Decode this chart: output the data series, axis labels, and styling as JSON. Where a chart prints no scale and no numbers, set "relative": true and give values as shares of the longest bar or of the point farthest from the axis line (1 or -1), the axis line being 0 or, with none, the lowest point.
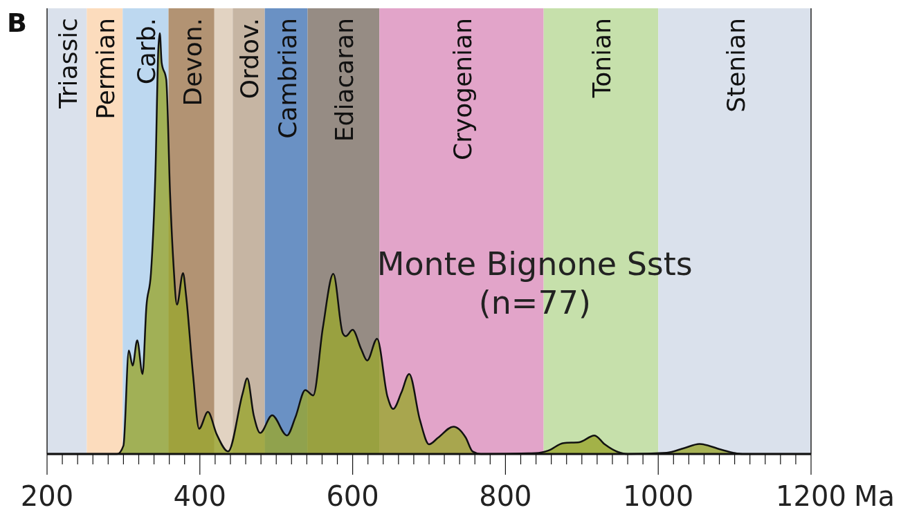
{
  "chart_data": {
    "type": "area",
    "relative": true,
    "xlabel": "Ma",
    "annotations": [
      "B",
      "Monte Bignone Ssts\n(n=77)"
    ],
    "xlim": [
      200,
      1200
    ],
    "xticks": [
      200,
      {
        "value": 220,
        "label": null
      },
      {
        "value": 240,
        "label": null
      },
      {
        "value": 260,
        "label": null
      },
      {
        "value": 280,
        "label": null
      },
      {
        "value": 300,
        "label": null
      },
      {
        "value": 320,
        "label": null
      },
      {
        "value": 340,
        "label": null
      },
      {
        "value": 360,
        "label": null
      },
      {
        "value": 380,
        "label": null
      },
      400,
      {
        "value": 420,
        "label": null
      },
      {
        "value": 440,
        "label": null
      },
      {
        "value": 460,
        "label": null
      },
      {
        "value": 480,
        "label": null
      },
      {
        "value": 500,
        "label": null
      },
      {
        "value": 520,
        "label": null
      },
      {
        "value": 540,
        "label": null
      },
      {
        "value": 560,
        "label": null
      },
      {
        "value": 580,
        "label": null
      },
      600,
      {
        "value": 620,
        "label": null
      },
      {
        "value": 640,
        "label": null
      },
      {
        "value": 660,
        "label": null
      },
      {
        "value": 680,
        "label": null
      },
      {
        "value": 700,
        "label": null
      },
      {
        "value": 720,
        "label": null
      },
      {
        "value": 740,
        "label": null
      },
      {
        "value": 760,
        "label": null
      },
      {
        "value": 780,
        "label": null
      },
      800,
      {
        "value": 820,
        "label": null
      },
      {
        "value": 840,
        "label": null
      },
      {
        "value": 860,
        "label": null
      },
      {
        "value": 880,
        "label": null
      },
      {
        "value": 900,
        "label": null
      },
      {
        "value": 920,
        "label": null
      },
      {
        "value": 940,
        "label": null
      },
      {
        "value": 960,
        "label": null
      },
      {
        "value": 980,
        "label": null
      },
      1000,
      {
        "value": 1020,
        "label": null
      },
      {
        "value": 1040,
        "label": null
      },
      {
        "value": 1060,
        "label": null
      },
      {
        "value": 1080,
        "label": null
      },
      {
        "value": 1100,
        "label": null
      },
      {
        "value": 1120,
        "label": null
      },
      {
        "value": 1140,
        "label": null
      },
      {
        "value": 1160,
        "label": null
      },
      {
        "value": 1180,
        "label": null
      },
      1200
    ],
    "bands": [
      {
        "axis": "x",
        "from": 200,
        "to": 252,
        "label": "Triassic",
        "color": "#dae1ec"
      },
      {
        "axis": "x",
        "from": 252,
        "to": 299,
        "label": "Permian",
        "color": "#fcdcbd"
      },
      {
        "axis": "x",
        "from": 299,
        "to": 359,
        "label": "Carb.",
        "color": "#bdd8f0"
      },
      {
        "axis": "x",
        "from": 359,
        "to": 419,
        "label": "Devon.",
        "color": "#b29373"
      },
      {
        "axis": "x",
        "from": 419,
        "to": 443,
        "color": "#e2d3c2"
      },
      {
        "axis": "x",
        "from": 443,
        "to": 485,
        "label": "Ordov.",
        "color": "#c6b5a3"
      },
      {
        "axis": "x",
        "from": 485,
        "to": 541,
        "label": "Cambrian",
        "color": "#6a91c4"
      },
      {
        "axis": "x",
        "from": 541,
        "to": 635,
        "label": "Ediacaran",
        "color": "#968c84"
      },
      {
        "axis": "x",
        "from": 635,
        "to": 850,
        "label": "Cryogenian",
        "color": "#e2a4c9"
      },
      {
        "axis": "x",
        "from": 850,
        "to": 1000,
        "label": "Tonian",
        "color": "#c6e0ab"
      },
      {
        "axis": "x",
        "from": 1000,
        "to": 1200,
        "label": "Stenian",
        "color": "#dae1ec"
      }
    ],
    "series": [
      {
        "color": "#9aa630",
        "x": [
          200,
          292,
          300,
          307,
          312,
          318,
          325,
          330,
          336,
          342,
          345.6,
          347.6,
          350,
          356,
          361,
          365.5,
          370,
          378,
          382,
          391,
          399,
          410.5,
          422,
          437,
          456,
          462,
          470.5,
          479,
          494.6,
          514,
          525,
          538,
          548.4,
          561,
          574.7,
          587,
          591,
          600,
          611,
          619,
          632,
          645.6,
          653,
          663.8,
          674,
          688,
          700,
          712,
          732,
          748,
          757,
          768,
          839.5,
          856,
          876,
          896.5,
          916.5,
          930,
          947,
          960,
          1011,
          1034,
          1054,
          1081,
          1098,
          1110,
          1200
        ],
        "values": [
          0,
          0,
          0.02,
          0.246,
          0.21,
          0.27,
          0.19,
          0.35,
          0.43,
          0.68,
          0.96,
          1,
          0.93,
          0.89,
          0.62,
          0.45,
          0.355,
          0.43,
          0.376,
          0.19,
          0.06,
          0.1,
          0.047,
          0.006,
          0.144,
          0.18,
          0.092,
          0.05,
          0.092,
          0.044,
          0.087,
          0.152,
          0.139,
          0.3,
          0.428,
          0.287,
          0.28,
          0.295,
          0.25,
          0.222,
          0.274,
          0.136,
          0.107,
          0.146,
          0.19,
          0.081,
          0.023,
          0.039,
          0.065,
          0.039,
          0.006,
          0,
          0.002,
          0.008,
          0.026,
          0.028,
          0.044,
          0.023,
          0.005,
          0,
          0.003,
          0.014,
          0.024,
          0.011,
          0.003,
          0,
          0
        ]
      }
    ]
  }
}
